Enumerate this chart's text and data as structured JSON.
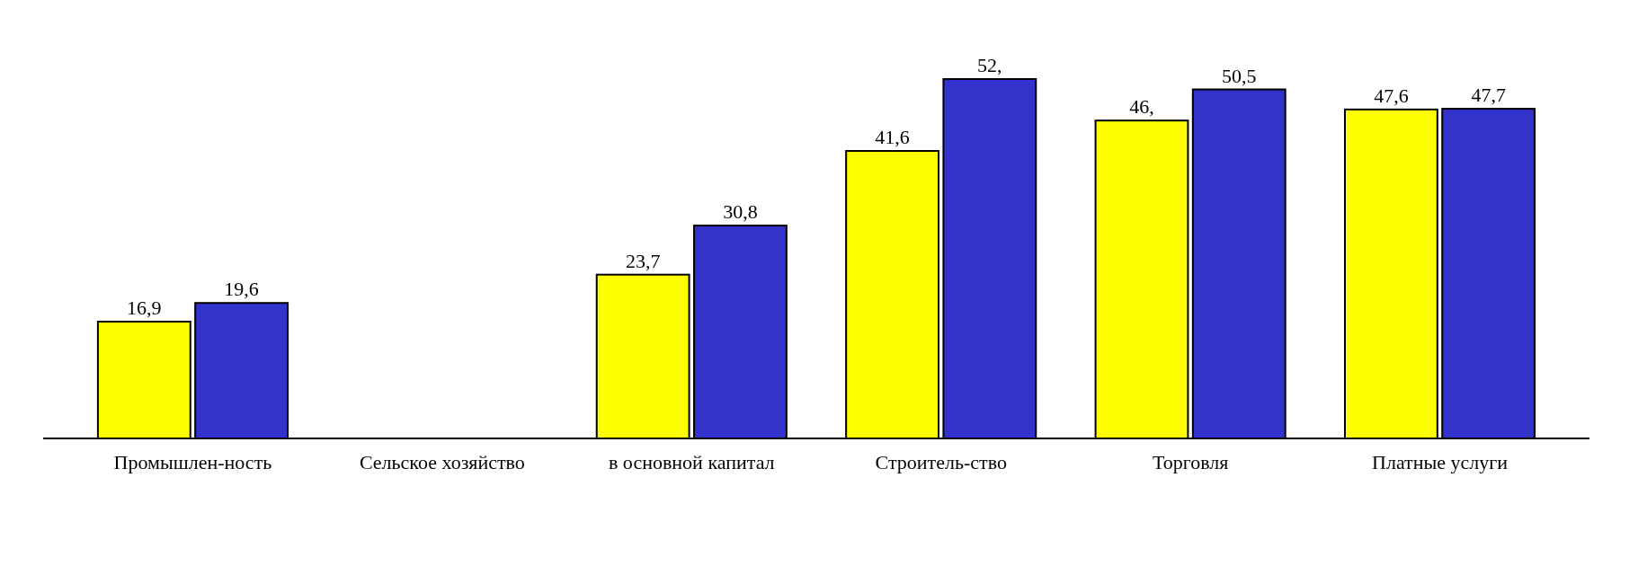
{
  "chart_data": {
    "type": "bar",
    "categories": [
      "Промышлен-ность",
      "Сельское хозяйство",
      "в основной капитал",
      "Строитель-ство",
      "Торговля",
      "Платные услуги"
    ],
    "series": [
      {
        "color": "#ffff00",
        "values": [
          16.9,
          null,
          23.7,
          41.6,
          46,
          47.6
        ],
        "value_labels": [
          "16,9",
          null,
          "23,7",
          "41,6",
          "46,",
          "47,6"
        ]
      },
      {
        "color": "#3333cc",
        "values": [
          19.6,
          null,
          30.8,
          52,
          50.5,
          47.7
        ],
        "value_labels": [
          "19,6",
          null,
          "30,8",
          "52,",
          "50,5",
          "47,7"
        ]
      }
    ]
  }
}
